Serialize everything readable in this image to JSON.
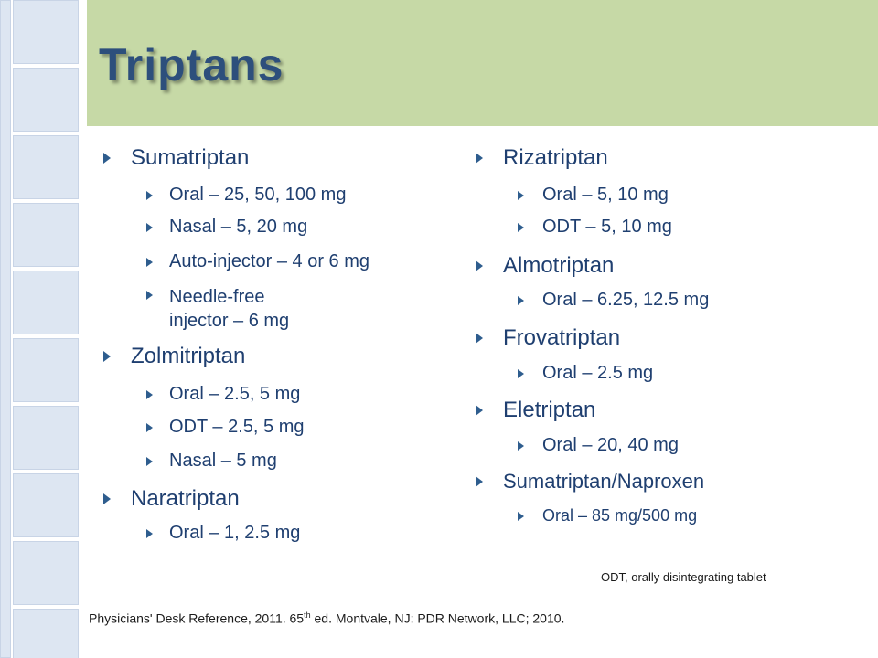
{
  "title": "Triptans",
  "columns": [
    {
      "items": [
        {
          "label": "Sumatriptan",
          "subitems": [
            "Oral – 25, 50, 100 mg",
            "Nasal – 5, 20 mg",
            "Auto-injector – 4 or 6 mg",
            "Needle-free injector – 6 mg"
          ]
        },
        {
          "label": "Zolmitriptan",
          "subitems": [
            "Oral – 2.5, 5 mg",
            "ODT – 2.5, 5 mg",
            "Nasal – 5 mg"
          ]
        },
        {
          "label": "Naratriptan",
          "subitems": [
            "Oral – 1, 2.5 mg"
          ]
        }
      ]
    },
    {
      "items": [
        {
          "label": "Rizatriptan",
          "subitems": [
            "Oral – 5, 10 mg",
            "ODT – 5, 10 mg"
          ]
        },
        {
          "label": "Almotriptan",
          "subitems": [
            "Oral – 6.25, 12.5 mg"
          ]
        },
        {
          "label": "Frovatriptan",
          "subitems": [
            "Oral – 2.5 mg"
          ]
        },
        {
          "label": "Eletriptan",
          "subitems": [
            "Oral – 20, 40 mg"
          ]
        },
        {
          "label": "Sumatriptan/Naproxen",
          "subitems": [
            "Oral – 85 mg/500 mg"
          ]
        }
      ]
    }
  ],
  "footnote": "ODT, orally disintegrating tablet",
  "reference": {
    "before": "Physicians' Desk Reference, 2011. 65",
    "superscript": "th",
    "after": " ed. Montvale, NJ: PDR Network, LLC; 2010."
  }
}
